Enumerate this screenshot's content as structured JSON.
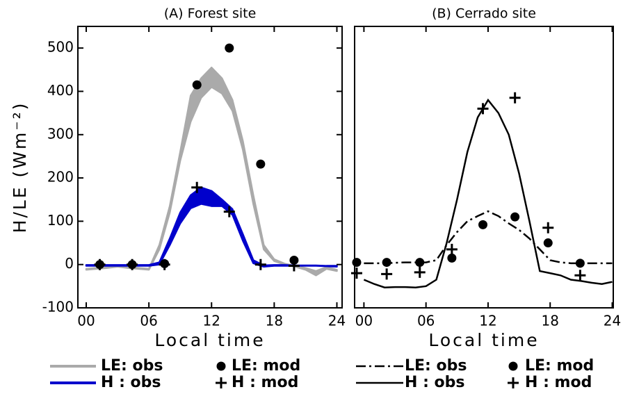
{
  "chart_data": [
    {
      "type": "line",
      "title": "(A) Forest site",
      "x_label": "Local time",
      "y_label": "H/LE (Wm⁻²)",
      "xlim": [
        -0.8,
        24.5
      ],
      "ylim": [
        -100,
        550
      ],
      "xticks": [
        {
          "value": 0,
          "label": "00"
        },
        {
          "value": 6,
          "label": "06"
        },
        {
          "value": 12,
          "label": "12"
        },
        {
          "value": 18,
          "label": "18"
        },
        {
          "value": 24,
          "label": "24"
        }
      ],
      "yticks": [
        -100,
        0,
        100,
        200,
        300,
        400,
        500
      ],
      "series": [
        {
          "name": "LE: obs",
          "color": "#aaaaaa",
          "style": "band",
          "x": [
            0,
            1,
            2,
            3,
            4,
            5,
            6,
            7,
            8,
            9,
            10,
            11,
            12,
            13,
            14,
            15,
            16,
            17,
            18,
            19,
            20,
            21,
            22,
            23,
            24
          ],
          "low": [
            -12,
            -10,
            -8,
            -5,
            -8,
            -10,
            -12,
            35,
            120,
            240,
            330,
            385,
            410,
            395,
            355,
            265,
            140,
            35,
            8,
            0,
            -5,
            -12,
            -25,
            -10,
            -15
          ],
          "high": [
            -10,
            -8,
            -6,
            -3,
            -6,
            -8,
            -10,
            45,
            135,
            260,
            390,
            430,
            455,
            430,
            380,
            285,
            160,
            45,
            12,
            2,
            -3,
            -8,
            -15,
            -6,
            -12
          ]
        },
        {
          "name": "H : obs",
          "color": "#0000cc",
          "style": "band",
          "x": [
            0,
            1,
            2,
            3,
            4,
            5,
            6,
            7,
            8,
            9,
            10,
            11,
            12,
            13,
            14,
            15,
            16,
            17,
            18,
            19,
            20,
            21,
            22,
            23,
            24
          ],
          "low": [
            -3,
            -3,
            -3,
            -3,
            -3,
            -3,
            -3,
            0,
            45,
            95,
            130,
            140,
            135,
            135,
            115,
            55,
            3,
            -5,
            -3,
            -3,
            -3,
            -3,
            -3,
            -4,
            -5
          ],
          "high": [
            -1,
            -1,
            -1,
            -1,
            -1,
            -1,
            -1,
            5,
            60,
            120,
            160,
            178,
            170,
            150,
            128,
            70,
            10,
            -2,
            -1,
            -1,
            -2,
            -2,
            -2,
            -3,
            -3
          ]
        },
        {
          "name": "LE: mod",
          "color": "#000000",
          "style": "dot",
          "x": [
            1.3,
            4.4,
            7.5,
            10.6,
            13.7,
            16.7,
            19.9
          ],
          "values": [
            0,
            0,
            2,
            415,
            500,
            232,
            10
          ]
        },
        {
          "name": "H : mod",
          "color": "#000000",
          "style": "plus",
          "x": [
            1.3,
            4.4,
            7.5,
            10.6,
            13.7,
            16.7,
            19.9
          ],
          "values": [
            0,
            0,
            0,
            178,
            122,
            0,
            -3
          ]
        }
      ]
    },
    {
      "type": "line",
      "title": "(B) Cerrado site",
      "x_label": "Local time",
      "xlim": [
        -0.9,
        24.1
      ],
      "ylim": [
        -100,
        550
      ],
      "xticks": [
        {
          "value": 0,
          "label": "00"
        },
        {
          "value": 6,
          "label": "06"
        },
        {
          "value": 12,
          "label": "12"
        },
        {
          "value": 18,
          "label": "18"
        },
        {
          "value": 24,
          "label": "24"
        }
      ],
      "series": [
        {
          "name": "LE: obs",
          "color": "#000000",
          "style": "dashdot",
          "x": [
            0,
            1,
            2,
            3,
            4,
            5,
            6,
            7,
            8,
            9,
            10,
            11,
            12,
            13,
            14,
            15,
            16,
            17,
            18,
            19,
            20,
            21,
            22,
            23,
            24
          ],
          "values": [
            3,
            3,
            3,
            4,
            5,
            5,
            5,
            10,
            45,
            75,
            100,
            112,
            123,
            112,
            95,
            80,
            60,
            35,
            10,
            5,
            3,
            3,
            3,
            3,
            3
          ]
        },
        {
          "name": "H : obs",
          "color": "#000000",
          "style": "solid",
          "x": [
            0,
            1,
            2,
            3,
            4,
            5,
            6,
            7,
            8,
            9,
            10,
            11,
            12,
            13,
            14,
            15,
            16,
            17,
            18,
            19,
            20,
            21,
            22,
            23,
            24
          ],
          "values": [
            -35,
            -45,
            -53,
            -52,
            -52,
            -53,
            -50,
            -35,
            50,
            150,
            260,
            340,
            380,
            350,
            300,
            210,
            100,
            -15,
            -20,
            -25,
            -35,
            -38,
            -42,
            -45,
            -40
          ]
        },
        {
          "name": "LE: mod",
          "color": "#000000",
          "style": "dot",
          "x": [
            -0.7,
            2.2,
            5.4,
            8.5,
            11.5,
            14.6,
            17.8,
            20.9
          ],
          "values": [
            5,
            5,
            5,
            15,
            92,
            110,
            50,
            3
          ]
        },
        {
          "name": "H : mod",
          "color": "#000000",
          "style": "plus",
          "x": [
            -0.7,
            2.2,
            5.4,
            8.5,
            11.5,
            14.6,
            17.8,
            20.9
          ],
          "values": [
            -20,
            -22,
            -18,
            35,
            360,
            385,
            85,
            -25
          ]
        }
      ]
    }
  ]
}
